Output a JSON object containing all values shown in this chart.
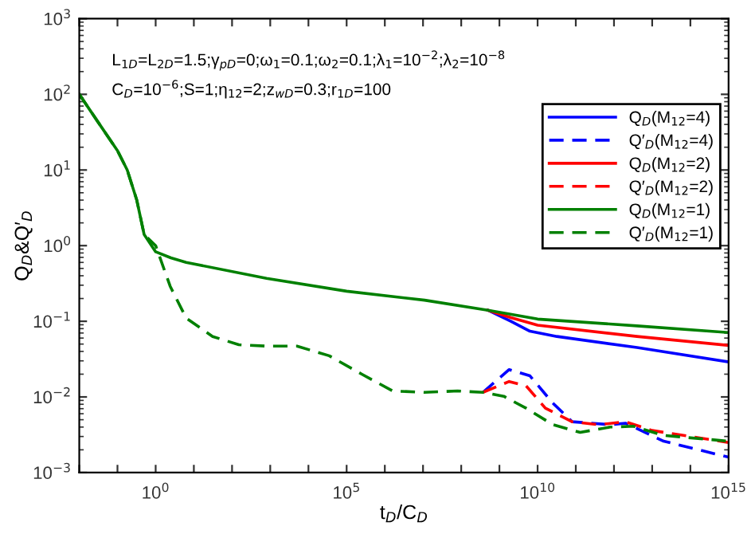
{
  "chart_data": {
    "type": "line",
    "xlabel": "t$_{D}$/C$_{D}$",
    "ylabel": "Q$_{D}$&Q′$_{D}$",
    "log": "xy",
    "grid": false,
    "legend": "top right",
    "xlim": [
      0.01,
      1000000000000000.0
    ],
    "ylim": [
      0.001,
      1000
    ],
    "xticks": [
      {
        "value": 0.01,
        "label": null
      },
      {
        "value": 0.1,
        "label": null
      },
      {
        "value": 1,
        "label": "10$^{0}$"
      },
      {
        "value": 10,
        "label": null
      },
      {
        "value": 100,
        "label": null
      },
      {
        "value": 1000,
        "label": null
      },
      {
        "value": 10000,
        "label": null
      },
      {
        "value": 100000,
        "label": "10$^{5}$"
      },
      {
        "value": 1000000.0,
        "label": null
      },
      {
        "value": 10000000.0,
        "label": null
      },
      {
        "value": 100000000.0,
        "label": null
      },
      {
        "value": 1000000000.0,
        "label": null
      },
      {
        "value": 10000000000.0,
        "label": "10$^{10}$"
      },
      {
        "value": 100000000000.0,
        "label": null
      },
      {
        "value": 1000000000000.0,
        "label": null
      },
      {
        "value": 10000000000000.0,
        "label": null
      },
      {
        "value": 100000000000000.0,
        "label": null
      },
      {
        "value": 1000000000000000.0,
        "label": "10$^{15}$"
      }
    ],
    "yticks": [
      {
        "value": 0.001,
        "label": "10$^{−3}$"
      },
      {
        "value": 0.01,
        "label": "10$^{−2}$"
      },
      {
        "value": 0.1,
        "label": "10$^{−1}$"
      },
      {
        "value": 1,
        "label": "10$^{0}$"
      },
      {
        "value": 10,
        "label": "10$^{1}$"
      },
      {
        "value": 100,
        "label": "10$^{2}$"
      },
      {
        "value": 1000,
        "label": "10$^{3}$"
      }
    ],
    "annotations": [
      "L$_{1D}$=L$_{2D}$=1.5;γ$_{pD}$=0;ω$_{1}$=0.1;ω$_{2}$=0.1;λ$_{1}$=10$^{−2}$;λ$_{2}$=10$^{−8}$",
      "C$_{D}$=10$^{−6}$;S=1;η$_{12}$=2;z$_{wD}$=0.3;r$_{1D}$=100"
    ],
    "series": [
      {
        "name": "Q$_{D}$(M$_{12}$=4)",
        "color": "#0000ff",
        "line_style": "solid",
        "x": [
          500000000.0,
          2000000000.0,
          6300000000.0,
          32000000000.0,
          4000000000000.0,
          1000000000000000.0
        ],
        "values": [
          0.14,
          0.1,
          0.074,
          0.063,
          0.045,
          0.029
        ]
      },
      {
        "name": "Q′$_{D}$(M$_{12}$=4)",
        "color": "#0000ff",
        "line_style": "dashed",
        "x": [
          370000000.0,
          1800000000.0,
          6300000000.0,
          25000000000.0,
          80000000000.0,
          800000000000.0,
          2000000000000.0,
          20000000000000.0,
          1000000000000000.0
        ],
        "values": [
          0.0115,
          0.023,
          0.019,
          0.0083,
          0.0047,
          0.0043,
          0.0045,
          0.0026,
          0.0016
        ]
      },
      {
        "name": "Q$_{D}$(M$_{12}$=2)",
        "color": "#ff0000",
        "line_style": "solid",
        "x": [
          500000000.0,
          2000000000.0,
          10000000000.0,
          4000000000000.0,
          1000000000000000.0
        ],
        "values": [
          0.14,
          0.112,
          0.089,
          0.063,
          0.048
        ]
      },
      {
        "name": "Q′$_{D}$(M$_{12}$=2)",
        "color": "#ff0000",
        "line_style": "dashed",
        "x": [
          370000000.0,
          1800000000.0,
          5000000000.0,
          16000000000.0,
          80000000000.0,
          400000000000.0,
          2000000000000.0,
          10000000000000.0,
          1000000000000000.0
        ],
        "values": [
          0.0115,
          0.016,
          0.014,
          0.0071,
          0.0047,
          0.0043,
          0.0047,
          0.0036,
          0.0025
        ]
      },
      {
        "name": "Q$_{D}$(M$_{12}$=1)",
        "color": "#008000",
        "line_style": "solid",
        "x": [
          0.01,
          0.032,
          0.1,
          0.18,
          0.32,
          0.5,
          1,
          2.5,
          6.3,
          800,
          100000.0,
          11000000.0,
          500000000.0,
          10000000000.0,
          4000000000000.0,
          1000000000000000.0
        ],
        "values": [
          100,
          42,
          18,
          10,
          4,
          1.4,
          0.83,
          0.69,
          0.6,
          0.37,
          0.25,
          0.19,
          0.14,
          0.107,
          0.087,
          0.071
        ]
      },
      {
        "name": "Q′$_{D}$(M$_{12}$=1)",
        "color": "#008000",
        "line_style": "dashed",
        "x": [
          0.01,
          0.032,
          0.1,
          0.18,
          0.32,
          0.5,
          1,
          2.4,
          6.3,
          31,
          150,
          750,
          5000,
          35000,
          250000.0,
          1600000.0,
          11000000.0,
          80000000.0,
          370000000.0,
          1300000000.0,
          5000000000.0,
          25000000000.0,
          130000000000.0,
          800000000000.0,
          3200000000000.0,
          20000000000000.0,
          1000000000000000.0
        ],
        "values": [
          100,
          42,
          18,
          10,
          4,
          1.4,
          1.0,
          0.29,
          0.11,
          0.063,
          0.049,
          0.047,
          0.047,
          0.035,
          0.02,
          0.012,
          0.0115,
          0.012,
          0.0115,
          0.0102,
          0.0071,
          0.0043,
          0.0034,
          0.004,
          0.0041,
          0.0031,
          0.0026
        ]
      }
    ]
  }
}
